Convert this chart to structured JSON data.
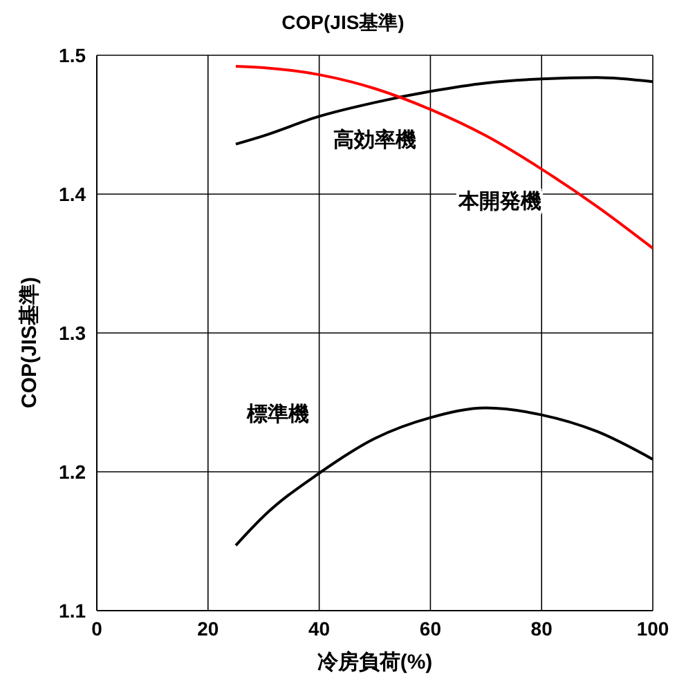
{
  "chart_data": {
    "type": "line",
    "title": "COP(JIS基準)",
    "xlabel": "冷房負荷(%)",
    "ylabel": "COP(JIS基準)",
    "x": [
      25,
      30,
      40,
      50,
      60,
      70,
      80,
      90,
      100
    ],
    "series": [
      {
        "name": "高効率機",
        "color": "#000000",
        "values": [
          1.436,
          1.442,
          1.456,
          1.466,
          1.474,
          1.48,
          1.483,
          1.484,
          1.481
        ]
      },
      {
        "name": "本開発機",
        "color": "#ff0000",
        "values": [
          1.492,
          1.491,
          1.486,
          1.476,
          1.461,
          1.442,
          1.418,
          1.391,
          1.361
        ]
      },
      {
        "name": "標準機",
        "color": "#000000",
        "values": [
          1.147,
          1.168,
          1.199,
          1.224,
          1.239,
          1.246,
          1.241,
          1.229,
          1.209
        ]
      }
    ],
    "xlim": [
      0,
      100
    ],
    "xticks": [
      0,
      20,
      40,
      60,
      80,
      100
    ],
    "ylim": [
      1.1,
      1.5
    ],
    "yticks": [
      1.1,
      1.2,
      1.3,
      1.4,
      1.5
    ],
    "grid": true,
    "legend": false,
    "marker": "none",
    "line_style": "solid"
  }
}
